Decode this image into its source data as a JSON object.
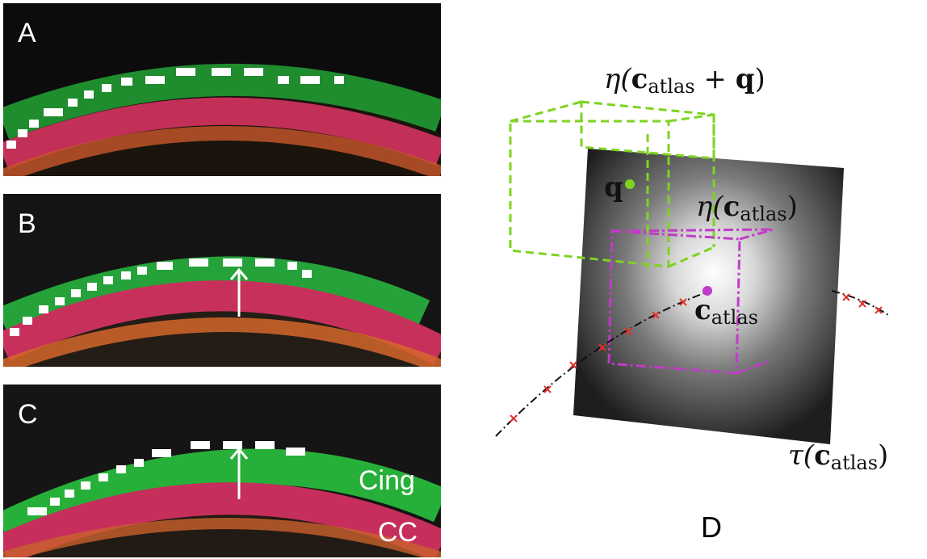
{
  "panels": [
    {
      "label": "A"
    },
    {
      "label": "B"
    },
    {
      "label": "C",
      "tags": [
        "Cing",
        "CC"
      ]
    }
  ],
  "panel_d": {
    "label": "D",
    "eta_q_pre": "η(",
    "eta_q_c": "c",
    "eta_q_sub": "atlas",
    "eta_q_plus": " + ",
    "eta_q_q": "q",
    "eta_q_post": ")",
    "eta_pre": "η(",
    "eta_c": "c",
    "eta_sub": "atlas",
    "eta_post": ")",
    "q_label": "q",
    "c_label": "c",
    "c_sub": "atlas",
    "tau_pre": "τ(",
    "tau_c": "c",
    "tau_sub": "atlas",
    "tau_post": ")"
  },
  "colors": {
    "fiber_green": "#2fbf3a",
    "fiber_red": "#d63a5e",
    "box_green": "#7ed321",
    "box_magenta": "#c23bc9",
    "path_marker": "#e0312a"
  }
}
